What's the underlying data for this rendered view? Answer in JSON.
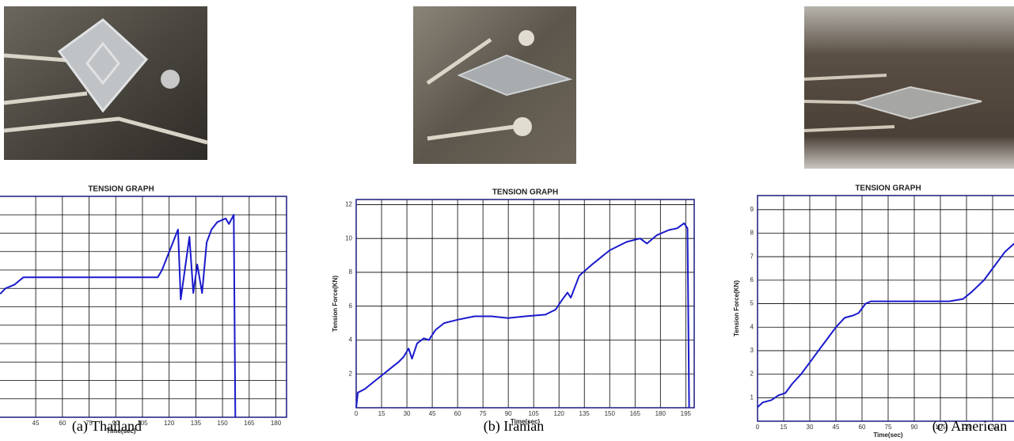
{
  "chart_data": [
    {
      "type": "line",
      "title": "TENSION GRAPH",
      "x_label": "Time(sec)",
      "caption": "(a) Thailand",
      "xlim": [
        0,
        186
      ],
      "xticks": [
        45,
        60,
        75,
        90,
        105,
        120,
        135,
        150,
        165,
        180
      ],
      "ylim": [
        0,
        12
      ],
      "yticks": [
        1,
        2,
        3,
        4,
        5,
        6,
        7,
        8,
        9,
        10,
        11,
        12
      ],
      "ytick_labels": false,
      "grid": true,
      "x": [
        25,
        28,
        33,
        38,
        45,
        80,
        113.6,
        116,
        125,
        126.5,
        131.4,
        133.6,
        135.8,
        138.5,
        141.1,
        143.8,
        147,
        151.8,
        153.6,
        156.3,
        157.2
      ],
      "series": [
        {
          "color": "#1a1acc",
          "values": [
            6.7,
            7.0,
            7.2,
            7.6,
            7.6,
            7.6,
            7.6,
            8.0,
            10.2,
            6.4,
            9.8,
            6.75,
            8.3,
            6.75,
            9.5,
            10.2,
            10.6,
            10.8,
            10.5,
            11.0,
            0
          ]
        }
      ]
    },
    {
      "type": "line",
      "title": "TENSION GRAPH",
      "x_label": "Time(sec)",
      "y_label": "Tension Force(KN)",
      "caption": "(b) Iranian",
      "xlim": [
        0,
        200
      ],
      "xticks": [
        0,
        15,
        30,
        45,
        60,
        75,
        90,
        105,
        120,
        135,
        150,
        165,
        180,
        195
      ],
      "ylim": [
        0,
        12.3
      ],
      "yticks": [
        2,
        4,
        6,
        8,
        10,
        12
      ],
      "ytick_labels": true,
      "grid": true,
      "x": [
        0,
        1,
        5,
        10,
        15,
        20,
        25,
        28,
        31,
        33,
        36,
        40,
        43,
        47,
        52,
        60,
        70,
        80,
        90,
        100,
        112,
        118,
        122,
        125,
        127,
        132,
        140,
        150,
        160,
        168,
        172,
        178,
        185,
        190,
        194,
        196,
        197
      ],
      "series": [
        {
          "color": "#1a1acc",
          "values": [
            0,
            0.9,
            1.1,
            1.5,
            1.9,
            2.3,
            2.7,
            3.0,
            3.5,
            2.9,
            3.8,
            4.1,
            4.0,
            4.6,
            5.0,
            5.2,
            5.4,
            5.4,
            5.3,
            5.4,
            5.5,
            5.8,
            6.4,
            6.8,
            6.5,
            7.8,
            8.5,
            9.3,
            9.8,
            10.0,
            9.7,
            10.2,
            10.5,
            10.6,
            10.9,
            10.6,
            0
          ]
        }
      ]
    },
    {
      "type": "line",
      "title": "TENSION GRAPH",
      "x_label": "Time(sec)",
      "y_label": "Tension Force(KN)",
      "caption": "(c) American",
      "xlim": [
        0,
        150
      ],
      "xticks": [
        0,
        15,
        30,
        45,
        60,
        75,
        90,
        105,
        120,
        135
      ],
      "ylim": [
        0,
        9.6
      ],
      "yticks": [
        1,
        2,
        3,
        4,
        5,
        6,
        7,
        8,
        9
      ],
      "ytick_labels": true,
      "grid": true,
      "x": [
        0,
        3,
        8,
        12,
        16,
        20,
        25,
        30,
        35,
        40,
        45,
        50,
        55,
        58,
        62,
        65,
        75,
        90,
        110,
        118,
        123,
        130,
        136,
        142,
        148
      ],
      "series": [
        {
          "color": "#1a1acc",
          "values": [
            0.6,
            0.8,
            0.9,
            1.1,
            1.2,
            1.6,
            2.0,
            2.5,
            3.0,
            3.5,
            4.0,
            4.4,
            4.5,
            4.6,
            5.0,
            5.1,
            5.1,
            5.1,
            5.1,
            5.2,
            5.5,
            6.0,
            6.6,
            7.2,
            7.6
          ]
        }
      ]
    }
  ]
}
